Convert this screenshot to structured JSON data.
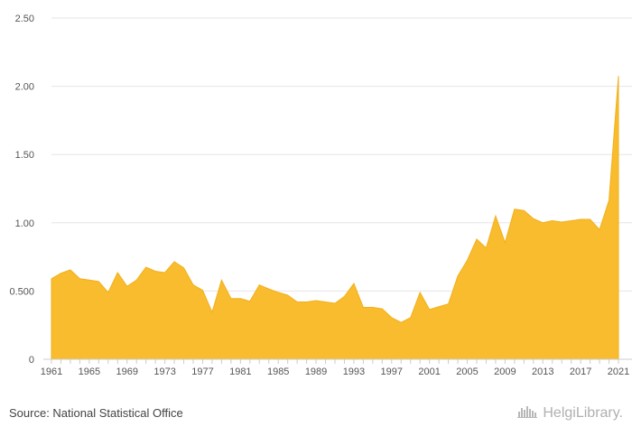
{
  "chart_data": {
    "type": "area",
    "title": "",
    "xlabel": "",
    "ylabel": "",
    "x": [
      1961,
      1962,
      1963,
      1964,
      1965,
      1966,
      1967,
      1968,
      1969,
      1970,
      1971,
      1972,
      1973,
      1974,
      1975,
      1976,
      1977,
      1978,
      1979,
      1980,
      1981,
      1982,
      1983,
      1984,
      1985,
      1986,
      1987,
      1988,
      1989,
      1990,
      1991,
      1992,
      1993,
      1994,
      1995,
      1996,
      1997,
      1998,
      1999,
      2000,
      2001,
      2002,
      2003,
      2004,
      2005,
      2006,
      2007,
      2008,
      2009,
      2010,
      2011,
      2012,
      2013,
      2014,
      2015,
      2016,
      2017,
      2018,
      2019,
      2020,
      2021
    ],
    "values": [
      0.59,
      0.63,
      0.655,
      0.59,
      0.58,
      0.57,
      0.49,
      0.635,
      0.535,
      0.58,
      0.675,
      0.645,
      0.635,
      0.715,
      0.67,
      0.545,
      0.505,
      0.345,
      0.58,
      0.445,
      0.445,
      0.425,
      0.545,
      0.515,
      0.49,
      0.47,
      0.42,
      0.42,
      0.43,
      0.42,
      0.41,
      0.46,
      0.555,
      0.38,
      0.38,
      0.37,
      0.305,
      0.27,
      0.305,
      0.49,
      0.365,
      0.385,
      0.405,
      0.61,
      0.725,
      0.88,
      0.815,
      1.05,
      0.855,
      1.1,
      1.09,
      1.03,
      1.0,
      1.015,
      1.005,
      1.015,
      1.025,
      1.025,
      0.95,
      1.165,
      2.075
    ],
    "xticks": [
      "1961",
      "1965",
      "1969",
      "1973",
      "1977",
      "1981",
      "1985",
      "1989",
      "1993",
      "1997",
      "2001",
      "2005",
      "2009",
      "2013",
      "2017",
      "2021"
    ],
    "yticks": [
      "0",
      "0.500",
      "1.00",
      "1.50",
      "2.00",
      "2.50"
    ],
    "ylim": [
      0,
      2.5
    ],
    "xlim": [
      1961,
      2021
    ],
    "grid": true,
    "legend": "none"
  },
  "colors": {
    "fill": "#F8BC2E",
    "stroke": "#F2B01A",
    "grid": "#e6e6e6",
    "axis": "#cccccc"
  },
  "footer": {
    "source": "Source: National Statistical Office",
    "logo_text": "HelgiLibrary.",
    "logo_icon": "library-skyline-icon"
  }
}
